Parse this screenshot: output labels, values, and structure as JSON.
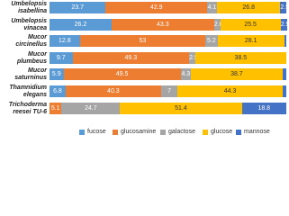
{
  "chart_data": {
    "type": "stacked_bar_horizontal",
    "categories": [
      "Umbelopsis isabellina",
      "Umbelopsis vinacea",
      "Mucor circinellus",
      "Mucor plumbeus",
      "Mucor saturninus",
      "Thamnidium elegans",
      "Trichoderma reesei TU-6"
    ],
    "xlim": [
      0,
      100
    ],
    "legend": "bottom",
    "series": [
      {
        "name": "fucose",
        "color": "#5b9bd5",
        "values": [
          23.7,
          26.2,
          12.8,
          9.7,
          5.9,
          6.8,
          0
        ],
        "value_labels": [
          "23.7",
          "26.2",
          "12.8",
          "9.7",
          "5.9",
          "6.8",
          null
        ]
      },
      {
        "name": "glucosamine",
        "color": "#ed7d31",
        "values": [
          42.9,
          43.3,
          53,
          49.3,
          49.5,
          40.3,
          5.1
        ],
        "value_labels": [
          "42.9",
          "43.3",
          "53",
          "49.3",
          "49.5",
          "40.3",
          "5.1"
        ]
      },
      {
        "name": "galactose",
        "color": "#a5a5a5",
        "values": [
          4.1,
          2.6,
          5.2,
          2.5,
          4.3,
          7,
          24.7
        ],
        "value_labels": [
          "4.1",
          "2.6",
          "5.2",
          "2.5",
          "4.3",
          "7",
          "24.7"
        ]
      },
      {
        "name": "glucose",
        "color": "#ffc000",
        "values": [
          26.8,
          25.5,
          28.1,
          38.5,
          38.7,
          44.3,
          51.4
        ],
        "value_labels": [
          "26.8",
          "25.5",
          "28.1",
          "38.5",
          "38.7",
          "44.3",
          "51.4"
        ]
      },
      {
        "name": "mannose",
        "color": "#4472c4",
        "values": [
          2.5,
          2.9,
          0.9,
          0,
          1.6,
          1.6,
          18.8
        ],
        "value_labels": [
          "2.5",
          "2.9",
          null,
          null,
          null,
          null,
          "18.8"
        ]
      }
    ]
  }
}
